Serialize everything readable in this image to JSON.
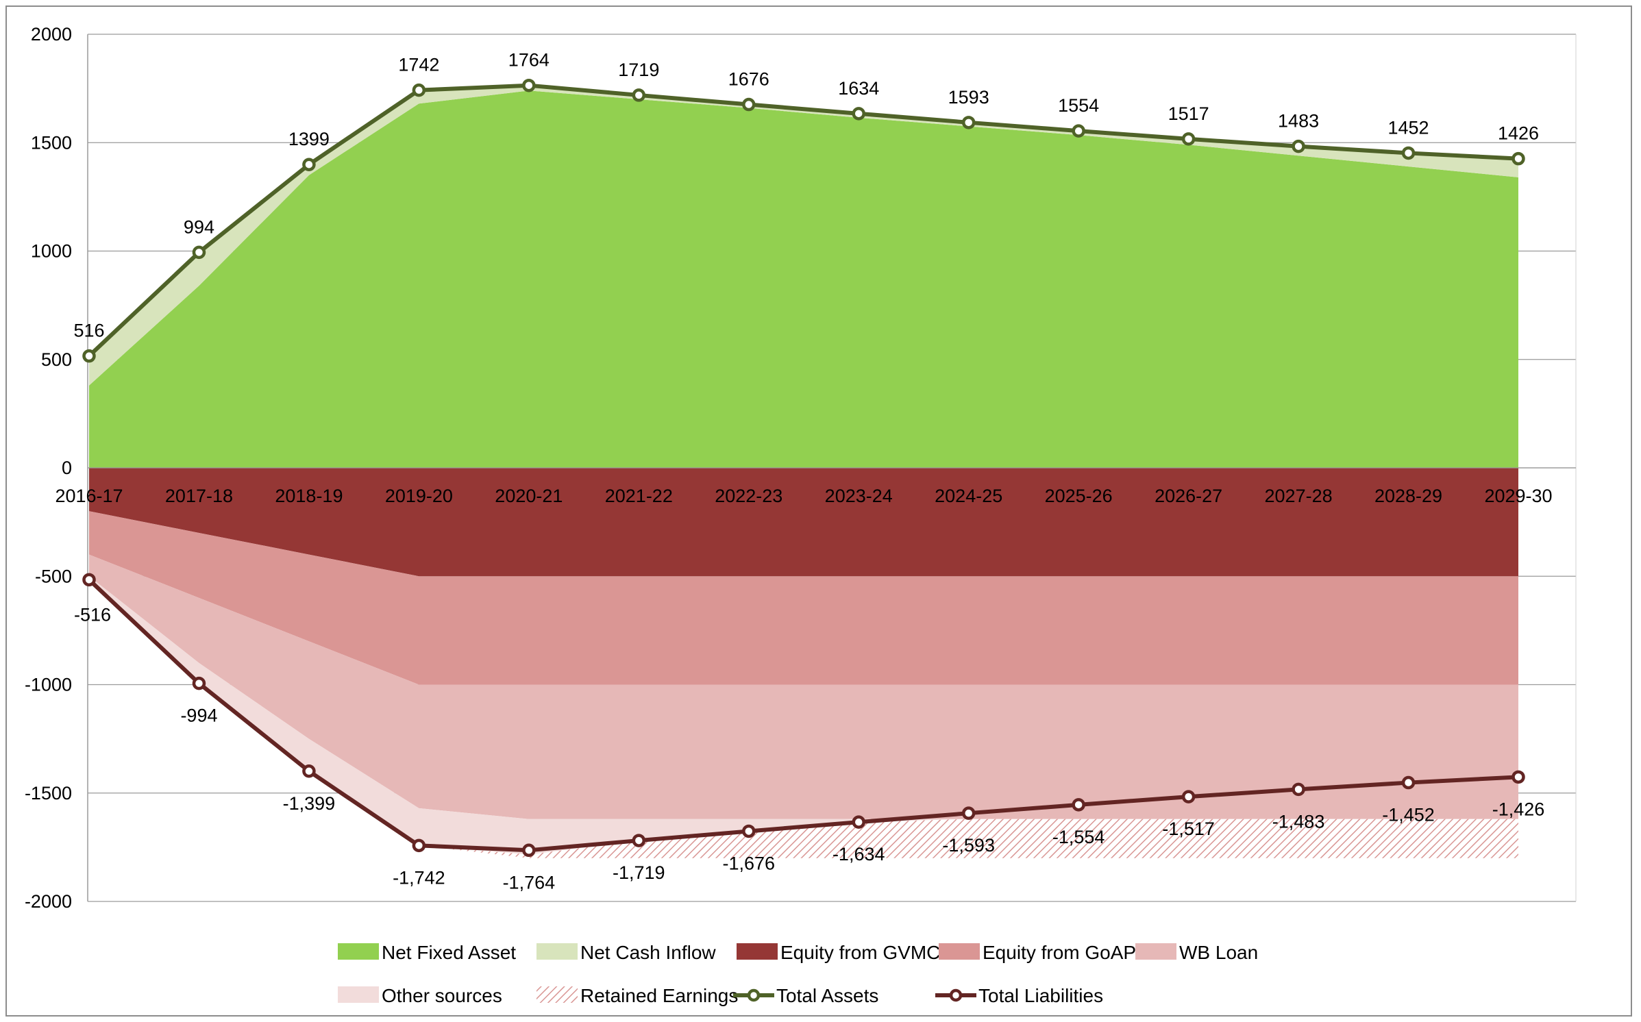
{
  "chart_data": {
    "type": "area",
    "categories": [
      "2016-17",
      "2017-18",
      "2018-19",
      "2019-20",
      "2020-21",
      "2021-22",
      "2022-23",
      "2023-24",
      "2024-25",
      "2025-26",
      "2026-27",
      "2027-28",
      "2028-29",
      "2029-30"
    ],
    "ylim": [
      -2000,
      2000
    ],
    "yticks": [
      {
        "value": 2000,
        "label": "2000"
      },
      {
        "value": 1500,
        "label": "1500"
      },
      {
        "value": 1000,
        "label": "1000"
      },
      {
        "value": 500,
        "label": "500"
      },
      {
        "value": 0,
        "label": "0"
      },
      {
        "value": -500,
        "label": "-500"
      },
      {
        "value": -1000,
        "label": "-1000"
      },
      {
        "value": -1500,
        "label": "-1500"
      },
      {
        "value": -2000,
        "label": "-2000"
      }
    ],
    "grid": true,
    "legend_position": "bottom",
    "stacked_positive": [
      {
        "name": "Net Fixed Asset",
        "color": "#92d050",
        "values": [
          380,
          840,
          1350,
          1680,
          1740,
          1700,
          1660,
          1615,
          1575,
          1535,
          1490,
          1440,
          1390,
          1340
        ]
      },
      {
        "name": "Net Cash Inflow",
        "color": "#d8e4bc",
        "values": [
          136,
          154,
          49,
          62,
          24,
          19,
          16,
          19,
          18,
          19,
          27,
          43,
          62,
          86
        ]
      }
    ],
    "stacked_negative": [
      {
        "name": "Equity from GVMC",
        "color": "#953735",
        "values": [
          -200,
          -300,
          -400,
          -500,
          -500,
          -500,
          -500,
          -500,
          -500,
          -500,
          -500,
          -500,
          -500,
          -500
        ]
      },
      {
        "name": "Equity from GoAP",
        "color": "#da9694",
        "values": [
          -200,
          -300,
          -400,
          -500,
          -500,
          -500,
          -500,
          -500,
          -500,
          -500,
          -500,
          -500,
          -500,
          -500
        ]
      },
      {
        "name": "WB Loan",
        "color": "#e6b8b7",
        "values": [
          -100,
          -300,
          -450,
          -570,
          -620,
          -620,
          -620,
          -620,
          -620,
          -620,
          -620,
          -620,
          -620,
          -620
        ]
      },
      {
        "name": "Other sources",
        "color": "#f2dcdb",
        "values": [
          -16,
          -94,
          -149,
          -172,
          -164,
          -99,
          -56,
          -14,
          0,
          0,
          0,
          0,
          0,
          0
        ]
      },
      {
        "name": "Retained Earnings",
        "color": "#d99694",
        "pattern": "hatch",
        "values": [
          0,
          0,
          0,
          0,
          -16,
          -81,
          -124,
          -166,
          -180,
          -180,
          -180,
          -180,
          -180,
          -180
        ]
      }
    ],
    "line_series": [
      {
        "name": "Total Assets",
        "color": "#4f6228",
        "values": [
          516,
          994,
          1399,
          1742,
          1764,
          1719,
          1676,
          1634,
          1593,
          1554,
          1517,
          1483,
          1452,
          1426
        ],
        "labels": [
          "516",
          "994",
          "1399",
          "1742",
          "1764",
          "1719",
          "1676",
          "1634",
          "1593",
          "1554",
          "1517",
          "1483",
          "1452",
          "1426"
        ]
      },
      {
        "name": "Total Liabilities",
        "color": "#632523",
        "values": [
          -516,
          -994,
          -1399,
          -1742,
          -1764,
          -1719,
          -1676,
          -1634,
          -1593,
          -1554,
          -1517,
          -1483,
          -1452,
          -1426
        ],
        "labels": [
          "-516",
          "-994",
          "-1,399",
          "-1,742",
          "-1,764",
          "-1,719",
          "-1,676",
          "-1,634",
          "-1,593",
          "-1,554",
          "-1,517",
          "-1,483",
          "-1,452",
          "-1,426"
        ]
      }
    ],
    "legend": [
      {
        "name": "Net Fixed Asset",
        "kind": "area",
        "color": "#92d050"
      },
      {
        "name": "Net Cash Inflow",
        "kind": "area",
        "color": "#d8e4bc"
      },
      {
        "name": "Equity from GVMC",
        "kind": "area",
        "color": "#953735"
      },
      {
        "name": "Equity from GoAP",
        "kind": "area",
        "color": "#da9694"
      },
      {
        "name": "WB Loan",
        "kind": "area",
        "color": "#e6b8b7"
      },
      {
        "name": "Other sources",
        "kind": "area",
        "color": "#f2dcdb"
      },
      {
        "name": "Retained Earnings",
        "kind": "hatch",
        "color": "#d99694"
      },
      {
        "name": "Total Assets",
        "kind": "line",
        "color": "#4f6228"
      },
      {
        "name": "Total Liabilities",
        "kind": "line",
        "color": "#632523"
      }
    ]
  }
}
